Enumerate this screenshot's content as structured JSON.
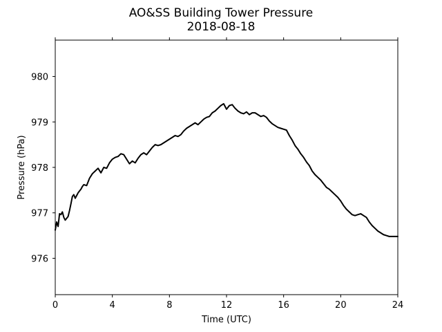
{
  "chart_data": {
    "type": "line",
    "title": "AO&SS Building Tower Pressure",
    "subtitle": "2018-08-18",
    "xlabel": "Time (UTC)",
    "ylabel": "Pressure (hPa)",
    "xlim": [
      0,
      24
    ],
    "ylim": [
      975.2,
      980.8
    ],
    "xticks": [
      0,
      4,
      8,
      12,
      16,
      20,
      24
    ],
    "xtick_labels": [
      "0",
      "4",
      "8",
      "12",
      "16",
      "20",
      "24"
    ],
    "yticks": [
      976,
      977,
      978,
      979,
      980
    ],
    "ytick_labels": [
      "976",
      "977",
      "978",
      "979",
      "980"
    ],
    "grid": false,
    "legend": "none",
    "line_color": "#000000",
    "series": [
      {
        "x": [
          0.0,
          0.1,
          0.2,
          0.3,
          0.4,
          0.5,
          0.6,
          0.7,
          0.8,
          0.9,
          1.0,
          1.1,
          1.2,
          1.3,
          1.4,
          1.5,
          1.6,
          1.7,
          1.8,
          1.9,
          2.0,
          2.2,
          2.4,
          2.6,
          2.8,
          3.0,
          3.2,
          3.4,
          3.6,
          3.8,
          4.0,
          4.2,
          4.4,
          4.6,
          4.8,
          5.0,
          5.2,
          5.4,
          5.6,
          5.8,
          6.0,
          6.2,
          6.4,
          6.6,
          6.8,
          7.0,
          7.2,
          7.4,
          7.6,
          7.8,
          8.0,
          8.2,
          8.4,
          8.6,
          8.8,
          9.0,
          9.2,
          9.4,
          9.6,
          9.8,
          10.0,
          10.2,
          10.4,
          10.6,
          10.8,
          11.0,
          11.2,
          11.4,
          11.6,
          11.8,
          12.0,
          12.2,
          12.4,
          12.6,
          12.8,
          13.0,
          13.2,
          13.4,
          13.6,
          13.8,
          14.0,
          14.2,
          14.4,
          14.6,
          14.8,
          15.0,
          15.2,
          15.4,
          15.6,
          15.8,
          16.0,
          16.2,
          16.4,
          16.6,
          16.8,
          17.0,
          17.2,
          17.4,
          17.6,
          17.8,
          18.0,
          18.2,
          18.4,
          18.6,
          18.8,
          19.0,
          19.2,
          19.4,
          19.6,
          19.8,
          20.0,
          20.2,
          20.4,
          20.6,
          20.8,
          21.0,
          21.2,
          21.4,
          21.6,
          21.8,
          22.0,
          22.2,
          22.4,
          22.6,
          22.8,
          23.0,
          23.2,
          23.4,
          23.6,
          23.8,
          24.0
        ],
        "y": [
          976.62,
          976.8,
          976.7,
          976.98,
          976.96,
          977.02,
          976.9,
          976.84,
          976.88,
          976.92,
          977.05,
          977.2,
          977.36,
          977.4,
          977.32,
          977.38,
          977.44,
          977.48,
          977.52,
          977.58,
          977.62,
          977.6,
          977.76,
          977.86,
          977.92,
          977.98,
          977.88,
          978.0,
          977.98,
          978.1,
          978.18,
          978.22,
          978.24,
          978.3,
          978.28,
          978.18,
          978.08,
          978.14,
          978.1,
          978.2,
          978.28,
          978.32,
          978.28,
          978.36,
          978.44,
          978.5,
          978.48,
          978.5,
          978.54,
          978.58,
          978.62,
          978.66,
          978.7,
          978.68,
          978.72,
          978.8,
          978.86,
          978.9,
          978.94,
          978.98,
          978.94,
          979.0,
          979.06,
          979.1,
          979.12,
          979.2,
          979.24,
          979.3,
          979.36,
          979.4,
          979.28,
          979.36,
          979.38,
          979.3,
          979.24,
          979.2,
          979.18,
          979.22,
          979.16,
          979.2,
          979.2,
          979.16,
          979.12,
          979.14,
          979.1,
          979.02,
          978.96,
          978.92,
          978.88,
          978.86,
          978.84,
          978.82,
          978.7,
          978.6,
          978.48,
          978.4,
          978.3,
          978.22,
          978.12,
          978.04,
          977.92,
          977.84,
          977.78,
          977.72,
          977.64,
          977.56,
          977.52,
          977.46,
          977.4,
          977.34,
          977.26,
          977.16,
          977.08,
          977.02,
          976.96,
          976.94,
          976.96,
          976.98,
          976.94,
          976.9,
          976.8,
          976.72,
          976.66,
          976.6,
          976.56,
          976.52,
          976.5,
          976.48,
          976.48,
          976.48,
          976.48
        ]
      }
    ]
  }
}
